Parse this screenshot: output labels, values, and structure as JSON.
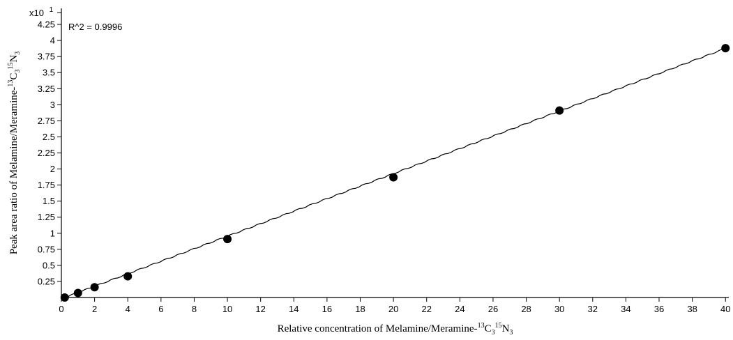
{
  "chart_data": {
    "type": "scatter",
    "xlabel": "Relative concentration of Melamine/Meramine-",
    "xlabel_sup1": "13",
    "xlabel_mid1": "C",
    "xlabel_sub1": "3",
    "xlabel_sup2": "15",
    "xlabel_mid2": "N",
    "xlabel_sub2": "3",
    "ylabel": "Peak area ratio of Melamine/Meramine-",
    "ylabel_sup1": "13",
    "ylabel_mid1": "C",
    "ylabel_sub1": "3",
    "ylabel_sup2": "15",
    "ylabel_mid2": "N",
    "ylabel_sub2": "3",
    "y_multiplier": "x10",
    "y_multiplier_exp": "1",
    "annotation": "R^2 = 0.9996",
    "xlim": [
      0,
      40.2
    ],
    "ylim": [
      0,
      4.5
    ],
    "x_ticks": [
      0,
      2,
      4,
      6,
      8,
      10,
      12,
      14,
      16,
      18,
      20,
      22,
      24,
      26,
      28,
      30,
      32,
      34,
      36,
      38,
      40
    ],
    "y_ticks": [
      0.25,
      0.5,
      0.75,
      1,
      1.25,
      1.5,
      1.75,
      2,
      2.25,
      2.5,
      2.75,
      3,
      3.25,
      3.5,
      3.75,
      4,
      4.25
    ],
    "y_tick_labels": [
      "0.25",
      "0.5",
      "0.75",
      "1",
      "1.25",
      "1.5",
      "1.75",
      "2",
      "2.25",
      "2.5",
      "2.75",
      "3",
      "3.25",
      "3.5",
      "3.75",
      "4",
      "4.25"
    ],
    "points": [
      {
        "x": 0.2,
        "y": 0.0
      },
      {
        "x": 1,
        "y": 0.07
      },
      {
        "x": 2,
        "y": 0.16
      },
      {
        "x": 4,
        "y": 0.33
      },
      {
        "x": 10,
        "y": 0.91
      },
      {
        "x": 20,
        "y": 1.87
      },
      {
        "x": 30,
        "y": 2.91
      },
      {
        "x": 40,
        "y": 3.88
      }
    ],
    "fit": {
      "slope": 0.0974,
      "intercept": -0.02,
      "x_range": [
        0.2,
        40
      ]
    },
    "colors": {
      "line": "#000000",
      "marker": "#000000"
    }
  }
}
